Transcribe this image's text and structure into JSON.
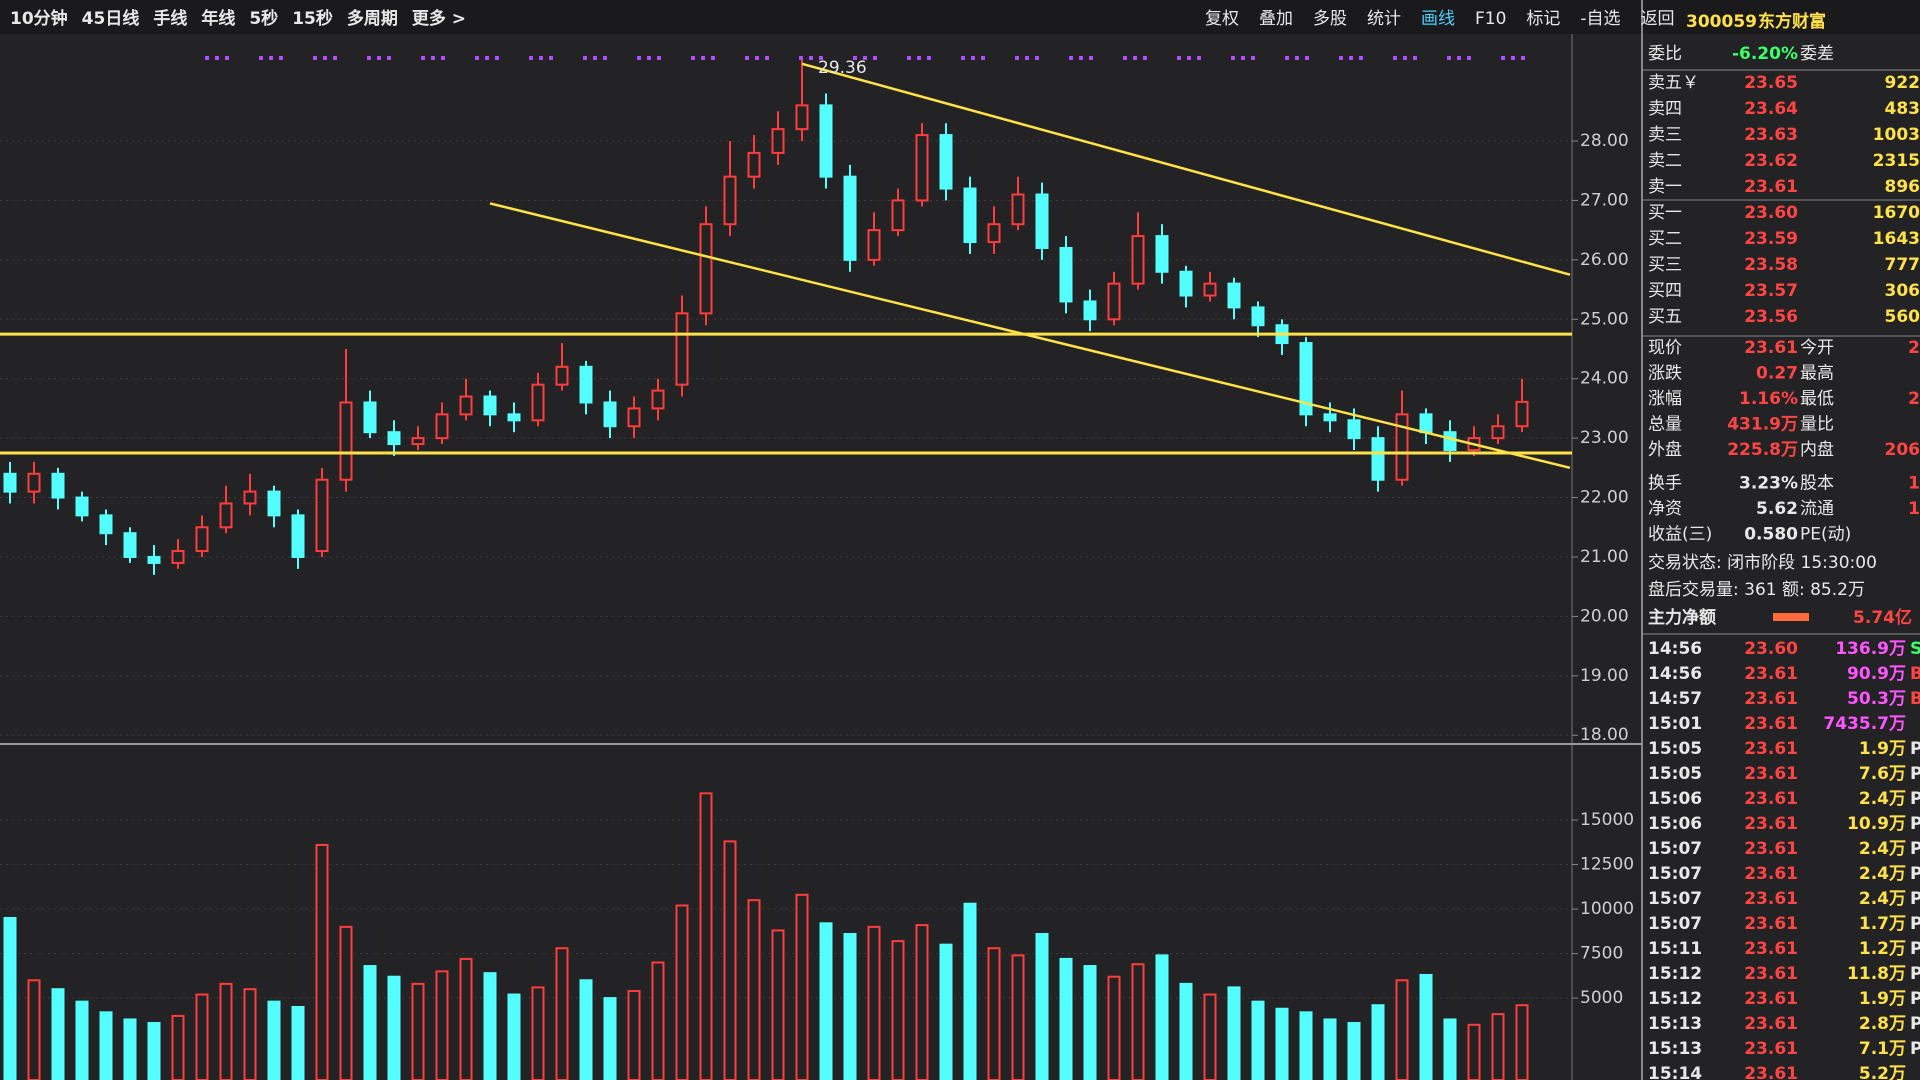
{
  "toolbar": {
    "left": [
      "10分钟",
      "45日线",
      "手线",
      "年线",
      "5秒",
      "15秒",
      "多周期",
      "更多 >"
    ],
    "right": [
      "复权",
      "叠加",
      "多股",
      "统计",
      "画线",
      "F10",
      "标记",
      "-自选",
      "返回"
    ]
  },
  "chart_data": {
    "type": "candlestick",
    "annotation": "29.36",
    "up_color": "#ff3c3c",
    "down_color": "#54ffff",
    "line_color": "#ffe14a",
    "grid": true,
    "open": [
      22.4,
      22.1,
      22.4,
      22.0,
      21.7,
      21.4,
      21.0,
      20.9,
      21.1,
      21.5,
      21.9,
      22.1,
      21.7,
      21.1,
      22.3,
      23.6,
      23.1,
      22.9,
      23.0,
      23.4,
      23.7,
      23.4,
      23.3,
      23.9,
      24.2,
      23.6,
      23.2,
      23.5,
      23.9,
      25.1,
      26.6,
      27.4,
      27.8,
      28.2,
      28.6,
      27.4,
      26.0,
      26.5,
      27.0,
      28.1,
      27.2,
      26.3,
      26.6,
      27.1,
      26.2,
      25.3,
      25.0,
      25.6,
      26.4,
      25.8,
      25.4,
      25.6,
      25.2,
      24.9,
      24.6,
      23.4,
      23.3,
      23.0,
      22.3,
      23.4,
      23.1,
      22.8,
      23.0,
      23.2
    ],
    "high": [
      22.6,
      22.6,
      22.5,
      22.1,
      21.8,
      21.5,
      21.2,
      21.3,
      21.7,
      22.2,
      22.4,
      22.2,
      21.8,
      22.5,
      24.5,
      23.8,
      23.3,
      23.2,
      23.6,
      24.0,
      23.8,
      23.6,
      24.1,
      24.6,
      24.3,
      23.8,
      23.7,
      24.0,
      25.4,
      26.9,
      28.0,
      28.1,
      28.5,
      29.36,
      28.8,
      27.6,
      26.8,
      27.2,
      28.3,
      28.3,
      27.4,
      26.9,
      27.4,
      27.3,
      26.4,
      25.5,
      25.8,
      26.8,
      26.6,
      25.9,
      25.8,
      25.7,
      25.3,
      25.0,
      24.7,
      23.6,
      23.5,
      23.2,
      23.8,
      23.5,
      23.3,
      23.2,
      23.4,
      24.0
    ],
    "low": [
      21.9,
      21.9,
      21.8,
      21.6,
      21.2,
      20.9,
      20.7,
      20.8,
      21.0,
      21.4,
      21.7,
      21.5,
      20.8,
      21.0,
      22.1,
      23.0,
      22.7,
      22.8,
      22.9,
      23.3,
      23.2,
      23.1,
      23.2,
      23.8,
      23.4,
      23.0,
      23.0,
      23.3,
      23.7,
      24.9,
      26.4,
      27.2,
      27.6,
      28.0,
      27.2,
      25.8,
      25.9,
      26.4,
      26.9,
      27.0,
      26.1,
      26.1,
      26.5,
      26.0,
      25.1,
      24.8,
      24.9,
      25.5,
      25.6,
      25.2,
      25.3,
      25.0,
      24.7,
      24.4,
      23.2,
      23.1,
      22.8,
      22.1,
      22.2,
      22.9,
      22.6,
      22.7,
      22.9,
      23.1
    ],
    "close": [
      22.1,
      22.4,
      22.0,
      21.7,
      21.4,
      21.0,
      20.9,
      21.1,
      21.5,
      21.9,
      22.1,
      21.7,
      21.0,
      22.3,
      23.6,
      23.1,
      22.9,
      23.0,
      23.4,
      23.7,
      23.4,
      23.3,
      23.9,
      24.2,
      23.6,
      23.2,
      23.5,
      23.8,
      25.1,
      26.6,
      27.4,
      27.8,
      28.2,
      28.6,
      27.4,
      26.0,
      26.5,
      27.0,
      28.1,
      27.2,
      26.3,
      26.6,
      27.1,
      26.2,
      25.3,
      25.0,
      25.6,
      26.4,
      25.8,
      25.4,
      25.6,
      25.2,
      24.9,
      24.6,
      23.4,
      23.3,
      23.0,
      22.3,
      23.4,
      23.1,
      22.8,
      23.0,
      23.2,
      23.61
    ],
    "volume": [
      9500,
      6000,
      5500,
      4800,
      4200,
      3800,
      3600,
      4000,
      5200,
      5800,
      5500,
      4800,
      4500,
      13600,
      9000,
      6800,
      6200,
      5800,
      6500,
      7200,
      6400,
      5200,
      5600,
      7800,
      6000,
      5000,
      5400,
      7000,
      10200,
      16500,
      13800,
      10500,
      8800,
      10800,
      9200,
      8600,
      9000,
      8200,
      9100,
      8000,
      10300,
      7800,
      7400,
      8600,
      7200,
      6800,
      6200,
      6900,
      7400,
      5800,
      5200,
      5600,
      4800,
      4400,
      4200,
      3800,
      3600,
      4600,
      6000,
      6300,
      3800,
      3500,
      4100,
      4600
    ],
    "ylim": [
      17.92,
      29.7
    ],
    "yticks": [
      {
        "value": 18,
        "label": "18.00"
      },
      {
        "value": 19,
        "label": "19.00"
      },
      {
        "value": 20,
        "label": "20.00"
      },
      {
        "value": 21,
        "label": "21.00"
      },
      {
        "value": 22,
        "label": "22.00"
      },
      {
        "value": 23,
        "label": "23.00"
      },
      {
        "value": 24,
        "label": "24.00"
      },
      {
        "value": 25,
        "label": "25.00"
      },
      {
        "value": 26,
        "label": "26.00"
      },
      {
        "value": 27,
        "label": "27.00"
      },
      {
        "value": 28,
        "label": "28.00"
      }
    ],
    "volume_ylim": [
      400,
      18540
    ],
    "volume_yticks": [
      5000,
      7500,
      10000,
      12500,
      15000
    ],
    "hlines": [
      24.75,
      22.75
    ],
    "trendlines": [
      {
        "from": [
          33,
          29.3
        ],
        "to": [
          65,
          25.75
        ]
      },
      {
        "from": [
          20,
          26.95
        ],
        "to": [
          65,
          22.5
        ]
      }
    ]
  },
  "quote": {
    "code": "300059",
    "name": "东方财富",
    "ratio_label": "委比",
    "ratio": "-6.20%",
    "diff_label": "委差",
    "book": [
      [
        "卖五￥",
        "23.65",
        "922"
      ],
      [
        "卖四",
        "23.64",
        "483"
      ],
      [
        "卖三",
        "23.63",
        "1003"
      ],
      [
        "卖二",
        "23.62",
        "2315"
      ],
      [
        "卖一",
        "23.61",
        "896"
      ],
      [
        "买一",
        "23.60",
        "1670"
      ],
      [
        "买二",
        "23.59",
        "1643"
      ],
      [
        "买三",
        "23.58",
        "777"
      ],
      [
        "买四",
        "23.57",
        "306"
      ],
      [
        "买五",
        "23.56",
        "560"
      ]
    ],
    "stats": [
      [
        "现价",
        "23.61",
        "今开",
        "2"
      ],
      [
        "涨跌",
        "0.27",
        "最高"
      ],
      [
        "涨幅",
        "1.16%",
        "最低",
        "2"
      ],
      [
        "总量",
        "431.9万",
        "量比"
      ],
      [
        "外盘",
        "225.8万",
        "内盘",
        "206"
      ],
      [
        "换手",
        "3.23%",
        "股本",
        "1"
      ],
      [
        "净资",
        "5.62",
        "流通",
        "1"
      ],
      [
        "收益(三)",
        "0.580",
        "PE(动)"
      ]
    ],
    "status": [
      "交易状态: 闭市阶段 15:30:00",
      "盘后交易量: 361  额: 85.2万"
    ],
    "main_label": "主力净额",
    "main_value": "5.74亿",
    "ticks": [
      [
        "14:56",
        "23.60",
        "136.9万",
        "S"
      ],
      [
        "14:56",
        "23.61",
        "90.9万",
        "B"
      ],
      [
        "14:57",
        "23.61",
        "50.3万",
        "B"
      ],
      [
        "15:01",
        "23.61",
        "7435.7万"
      ],
      [
        "15:05",
        "23.61",
        "1.9万",
        "P"
      ],
      [
        "15:05",
        "23.61",
        "7.6万",
        "P"
      ],
      [
        "15:06",
        "23.61",
        "2.4万",
        "P"
      ],
      [
        "15:06",
        "23.61",
        "10.9万",
        "P"
      ],
      [
        "15:07",
        "23.61",
        "2.4万",
        "P"
      ],
      [
        "15:07",
        "23.61",
        "2.4万",
        "P"
      ],
      [
        "15:07",
        "23.61",
        "2.4万",
        "P"
      ],
      [
        "15:07",
        "23.61",
        "1.7万",
        "P"
      ],
      [
        "15:11",
        "23.61",
        "1.2万",
        "P"
      ],
      [
        "15:12",
        "23.61",
        "11.8万",
        "P"
      ],
      [
        "15:12",
        "23.61",
        "1.9万",
        "P"
      ],
      [
        "15:13",
        "23.61",
        "2.8万",
        "P"
      ],
      [
        "15:13",
        "23.61",
        "7.1万",
        "P"
      ],
      [
        "15:14",
        "23.61",
        "5.2万"
      ]
    ]
  }
}
